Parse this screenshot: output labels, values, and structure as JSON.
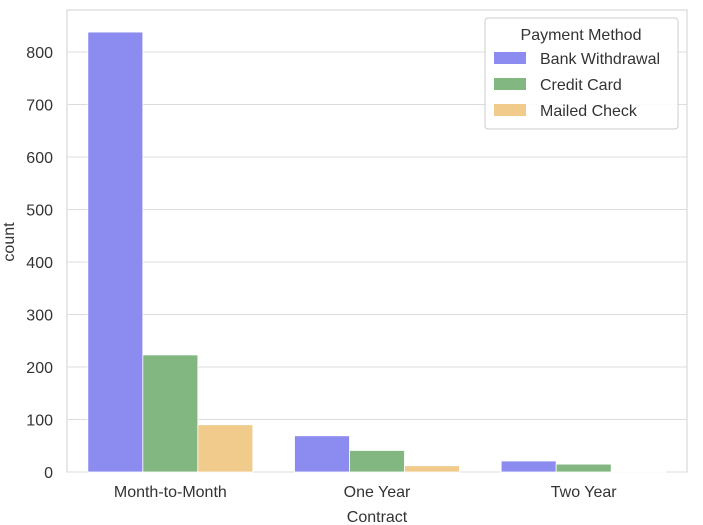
{
  "chart_data": {
    "type": "bar",
    "xlabel": "Contract",
    "ylabel": "count",
    "categories": [
      "Month-to-Month",
      "One Year",
      "Two Year"
    ],
    "ylim": [
      0,
      880
    ],
    "yticks": [
      0,
      100,
      200,
      300,
      400,
      500,
      600,
      700,
      800
    ],
    "grid": "horizontal",
    "legend": {
      "title": "Payment Method",
      "placement": "top-right"
    },
    "series": [
      {
        "name": "Bank Withdrawal",
        "color": "#8c8cf0",
        "values": [
          838,
          69,
          21
        ]
      },
      {
        "name": "Credit Card",
        "color": "#82b782",
        "values": [
          223,
          41,
          15
        ]
      },
      {
        "name": "Mailed Check",
        "color": "#f0cb8c",
        "values": [
          90,
          12,
          1
        ]
      }
    ]
  }
}
